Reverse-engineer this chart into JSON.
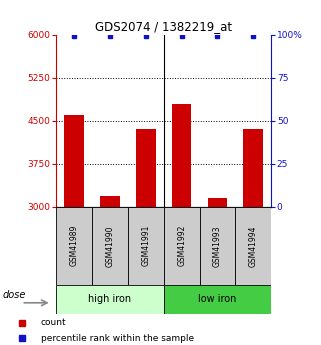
{
  "title": "GDS2074 / 1382219_at",
  "samples": [
    "GSM41989",
    "GSM41990",
    "GSM41991",
    "GSM41992",
    "GSM41993",
    "GSM41994"
  ],
  "counts": [
    4600,
    3200,
    4350,
    4800,
    3150,
    4350
  ],
  "percentiles": [
    99,
    99,
    99,
    99,
    99,
    99
  ],
  "bar_color": "#cc0000",
  "dot_color": "#1111cc",
  "baseline": 3000,
  "ylim_left": [
    3000,
    6000
  ],
  "ylim_right": [
    0,
    100
  ],
  "yticks_left": [
    3000,
    3750,
    4500,
    5250,
    6000
  ],
  "yticks_right": [
    0,
    25,
    50,
    75,
    100
  ],
  "yticklabels_right": [
    "0",
    "25",
    "50",
    "75",
    "100%"
  ],
  "group1_label": "high iron",
  "group2_label": "low iron",
  "dose_label": "dose",
  "legend_count": "count",
  "legend_percentile": "percentile rank within the sample",
  "group1_color": "#ccffcc",
  "group2_color": "#44cc44",
  "sample_box_color": "#cccccc",
  "bar_width": 0.55
}
